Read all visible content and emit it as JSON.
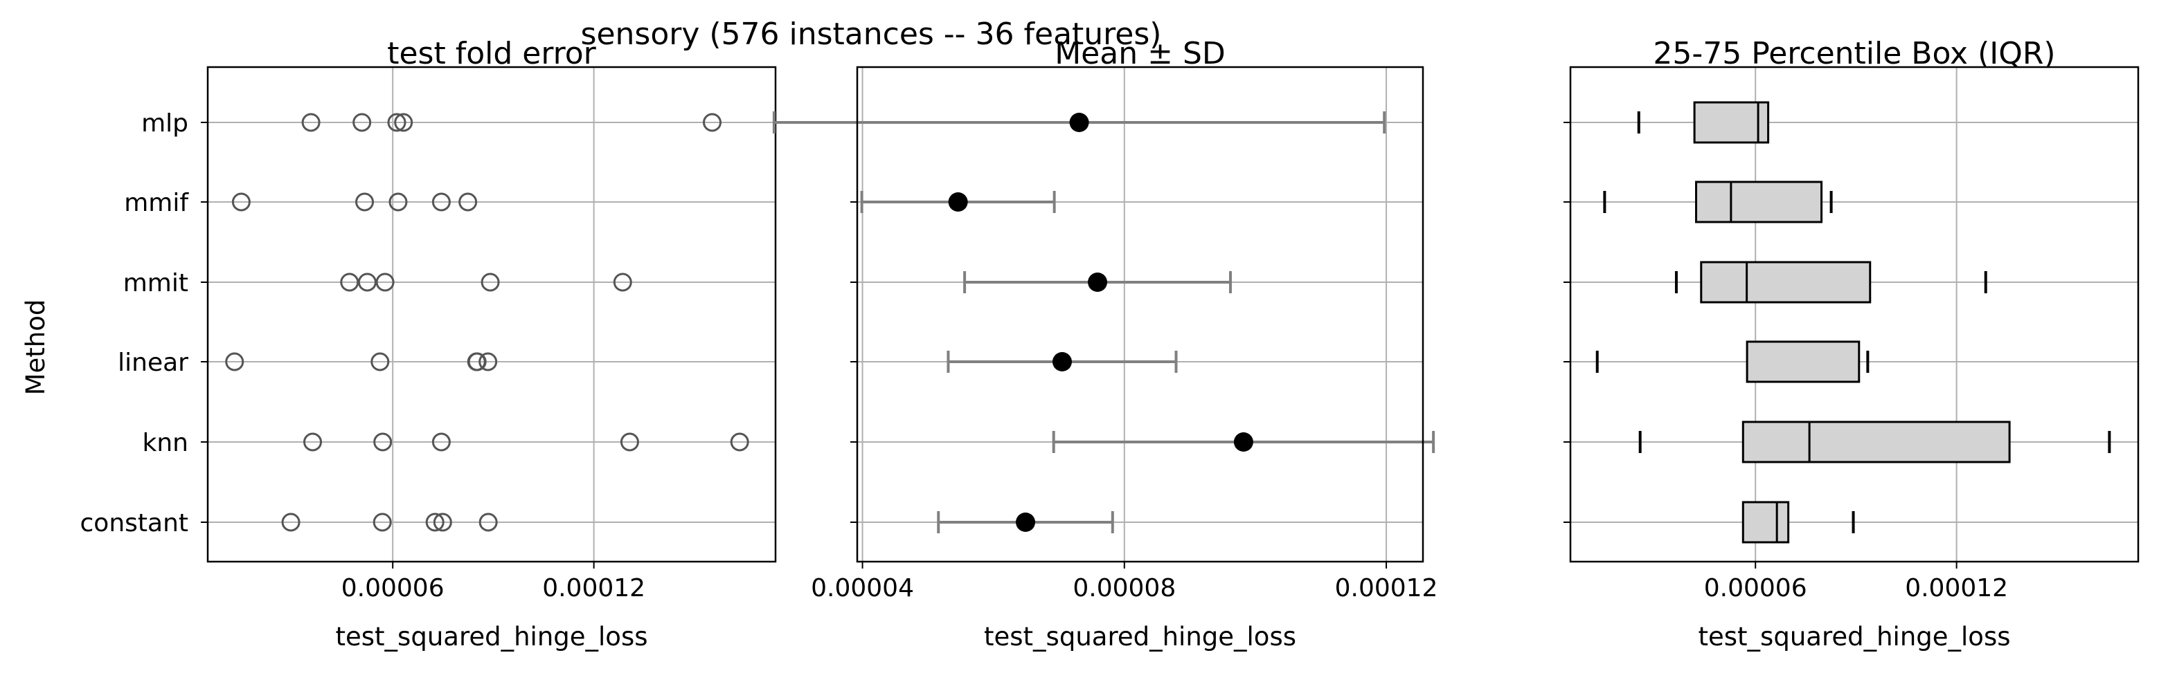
{
  "figure": {
    "suptitle": "sensory (576 instances -- 36 features)",
    "ylabel": "Method"
  },
  "colors": {
    "grid": "#b0b0b0",
    "axes": "#000000",
    "marker_edge": "#555555",
    "errorbar": "#808080",
    "mean_dot": "#000000",
    "box_fill": "#d3d3d3"
  },
  "chart_data": [
    {
      "type": "scatter",
      "title": "test fold error",
      "xlabel": "test_squared_hinge_loss",
      "ylabel": "Method",
      "categories": [
        "mlp",
        "mmif",
        "mmit",
        "linear",
        "knn",
        "constant"
      ],
      "xlim": [
        4.8e-06,
        0.0001742
      ],
      "xticks": [
        6e-05,
        0.00012
      ],
      "xtick_labels": [
        "0.00006",
        "0.00012"
      ],
      "grid": true,
      "points": {
        "mlp": [
          3.56e-05,
          5.08e-05,
          6.12e-05,
          6.32e-05,
          0.0001553
        ],
        "mmif": [
          1.48e-05,
          5.16e-05,
          6.16e-05,
          7.45e-05,
          8.24e-05
        ],
        "mmit": [
          4.71e-05,
          5.24e-05,
          5.77e-05,
          8.91e-05,
          0.0001286
        ],
        "linear": [
          1.28e-05,
          5.62e-05,
          8.5e-05,
          8.52e-05,
          8.84e-05
        ],
        "knn": [
          3.61e-05,
          5.7e-05,
          7.45e-05,
          0.0001307,
          0.0001635
        ],
        "constant": [
          2.96e-05,
          5.69e-05,
          7.26e-05,
          7.49e-05,
          8.85e-05
        ]
      }
    },
    {
      "type": "errorbar",
      "title": "Mean ± SD",
      "xlabel": "test_squared_hinge_loss",
      "categories": [
        "mlp",
        "mmif",
        "mmit",
        "linear",
        "knn",
        "constant"
      ],
      "xlim": [
        3.92e-05,
        0.0001256
      ],
      "xticks": [
        4e-05,
        8e-05,
        0.00012
      ],
      "xtick_labels": [
        "0.00004",
        "0.00008",
        "0.00012"
      ],
      "grid": true,
      "mean": {
        "mlp": 7.31e-05,
        "mmif": 5.46e-05,
        "mmit": 7.59e-05,
        "linear": 7.05e-05,
        "knn": 9.82e-05,
        "constant": 6.49e-05
      },
      "sd": {
        "mlp": 4.66e-05,
        "mmif": 1.47e-05,
        "mmit": 2.03e-05,
        "linear": 1.74e-05,
        "knn": 2.9e-05,
        "constant": 1.33e-05
      }
    },
    {
      "type": "box",
      "title": "25-75 Percentile Box (IQR)",
      "xlabel": "test_squared_hinge_loss",
      "categories": [
        "mlp",
        "mmif",
        "mmit",
        "linear",
        "knn",
        "constant"
      ],
      "xlim": [
        4.8e-06,
        0.0001742
      ],
      "xticks": [
        6e-05,
        0.00012
      ],
      "xtick_labels": [
        "0.00006",
        "0.00012"
      ],
      "grid": true,
      "boxes": {
        "mlp": {
          "q1": 4.18e-05,
          "median": 6.08e-05,
          "q3": 6.38e-05,
          "min": 2.52e-05,
          "max": null
        },
        "mmif": {
          "q1": 4.23e-05,
          "median": 5.27e-05,
          "q3": 7.97e-05,
          "min": 1.5e-05,
          "max": 8.26e-05
        },
        "mmit": {
          "q1": 4.38e-05,
          "median": 5.74e-05,
          "q3": 9.42e-05,
          "min": 3.64e-05,
          "max": 0.0001287
        },
        "linear": {
          "q1": 5.75e-05,
          "median": null,
          "q3": 9.09e-05,
          "min": 1.28e-05,
          "max": 9.35e-05
        },
        "knn": {
          "q1": 5.63e-05,
          "median": 7.61e-05,
          "q3": 0.0001358,
          "min": 2.56e-05,
          "max": 0.0001656
        },
        "constant": {
          "q1": 5.63e-05,
          "median": 6.64e-05,
          "q3": 6.98e-05,
          "min": null,
          "max": 8.92e-05
        }
      }
    }
  ]
}
